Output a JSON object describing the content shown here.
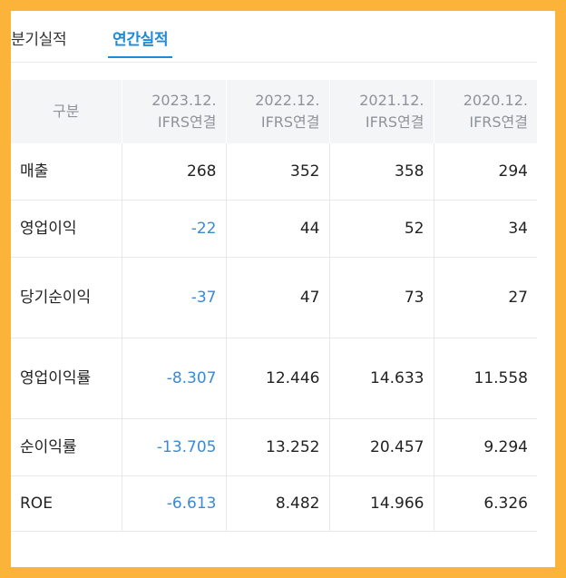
{
  "tabs": {
    "quarterly": "분기실적",
    "annual": "연간실적"
  },
  "table": {
    "header_label": "구분",
    "periods": [
      {
        "date": "2023.12.",
        "basis": "IFRS연결"
      },
      {
        "date": "2022.12.",
        "basis": "IFRS연결"
      },
      {
        "date": "2021.12.",
        "basis": "IFRS연결"
      },
      {
        "date": "2020.12.",
        "basis": "IFRS연결"
      }
    ],
    "rows": [
      {
        "label": "매출",
        "values": [
          "268",
          "352",
          "358",
          "294"
        ]
      },
      {
        "label": "영업이익",
        "values": [
          "-22",
          "44",
          "52",
          "34"
        ]
      },
      {
        "label": "당기순이익",
        "values": [
          "-37",
          "47",
          "73",
          "27"
        ]
      },
      {
        "label": "영업이익률",
        "values": [
          "-8.307",
          "12.446",
          "14.633",
          "11.558"
        ]
      },
      {
        "label": "순이익률",
        "values": [
          "-13.705",
          "13.252",
          "20.457",
          "9.294"
        ]
      },
      {
        "label": "ROE",
        "values": [
          "-6.613",
          "8.482",
          "14.966",
          "6.326"
        ]
      }
    ]
  },
  "colors": {
    "frame": "#fbb33a",
    "accent": "#1f8ad8",
    "negative": "#3a8ad6"
  }
}
